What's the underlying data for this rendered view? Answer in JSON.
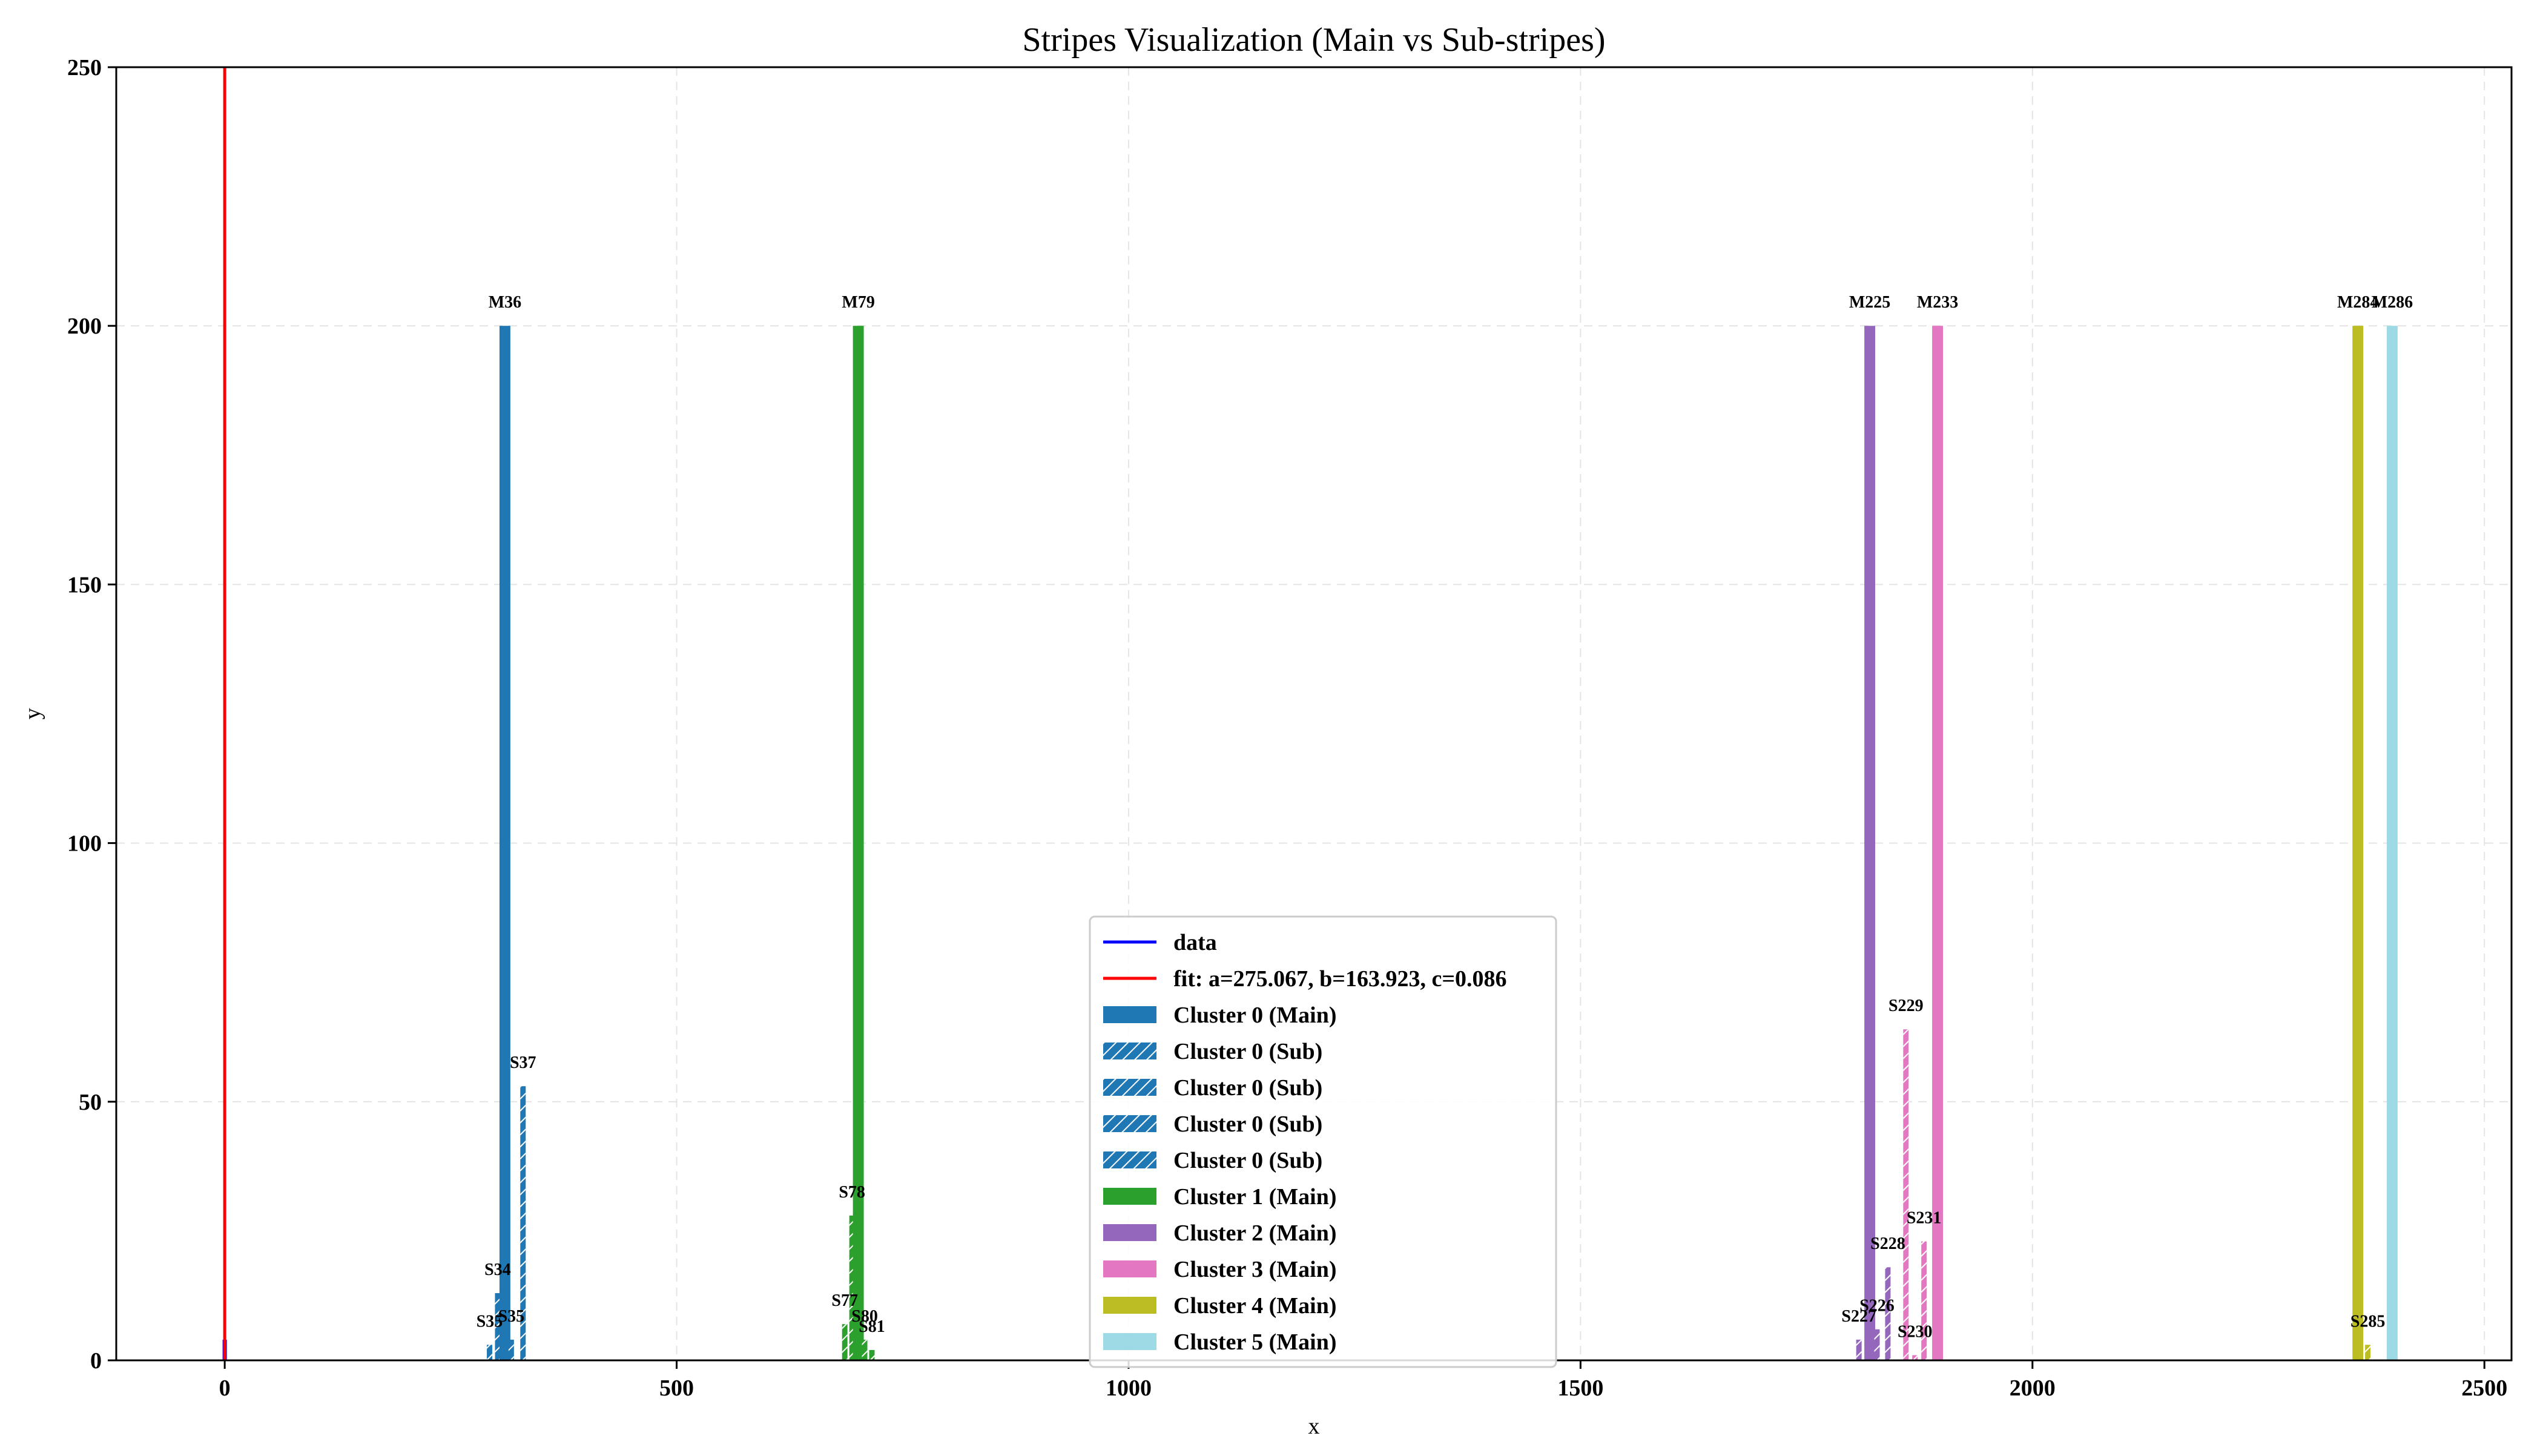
{
  "chart_data": {
    "type": "bar",
    "title": "Stripes Visualization (Main vs Sub-stripes)",
    "xlabel": "x",
    "ylabel": "y",
    "xlim": [
      -120,
      2530
    ],
    "ylim": [
      0,
      250
    ],
    "x_ticks": [
      0,
      500,
      1000,
      1500,
      2000,
      2500
    ],
    "y_ticks": [
      0,
      50,
      100,
      150,
      200,
      250
    ],
    "grid": true,
    "legend_position": "lower center",
    "lines": [
      {
        "name": "data",
        "color": "#0000ff",
        "x": [
          0,
          0
        ],
        "y": [
          0,
          4
        ]
      },
      {
        "name": "fit: a=275.067, b=163.923, c=0.086",
        "color": "#ff0000",
        "x": [
          0,
          0
        ],
        "y": [
          0,
          250
        ]
      }
    ],
    "bars": [
      {
        "label": "S35",
        "x": 293,
        "width": 6,
        "value": 3,
        "kind": "sub",
        "color": "#1f77b4"
      },
      {
        "label": "S34",
        "x": 302,
        "width": 6,
        "value": 13,
        "kind": "sub",
        "color": "#1f77b4"
      },
      {
        "label": "M36",
        "x": 310,
        "width": 12,
        "value": 200,
        "kind": "main",
        "color": "#1f77b4"
      },
      {
        "label": "S35",
        "x": 317,
        "width": 6,
        "value": 4,
        "kind": "sub",
        "color": "#1f77b4"
      },
      {
        "label": "S37",
        "x": 330,
        "width": 6,
        "value": 53,
        "kind": "sub",
        "color": "#1f77b4"
      },
      {
        "label": "S77",
        "x": 686,
        "width": 6,
        "value": 7,
        "kind": "sub",
        "color": "#2ca02c"
      },
      {
        "label": "S78",
        "x": 694,
        "width": 6,
        "value": 28,
        "kind": "sub",
        "color": "#2ca02c"
      },
      {
        "label": "M79",
        "x": 701,
        "width": 12,
        "value": 200,
        "kind": "main",
        "color": "#2ca02c"
      },
      {
        "label": "S80",
        "x": 708,
        "width": 6,
        "value": 4,
        "kind": "sub",
        "color": "#2ca02c"
      },
      {
        "label": "S81",
        "x": 716,
        "width": 6,
        "value": 2,
        "kind": "sub",
        "color": "#2ca02c"
      },
      {
        "label": "S227",
        "x": 1808,
        "width": 6,
        "value": 4,
        "kind": "sub",
        "color": "#9467bd"
      },
      {
        "label": "M225",
        "x": 1820,
        "width": 12,
        "value": 200,
        "kind": "main",
        "color": "#9467bd"
      },
      {
        "label": "S226",
        "x": 1828,
        "width": 6,
        "value": 6,
        "kind": "sub",
        "color": "#9467bd"
      },
      {
        "label": "S228",
        "x": 1840,
        "width": 6,
        "value": 18,
        "kind": "sub",
        "color": "#9467bd"
      },
      {
        "label": "S229",
        "x": 1860,
        "width": 6,
        "value": 64,
        "kind": "sub",
        "color": "#e377c2"
      },
      {
        "label": "S230",
        "x": 1870,
        "width": 6,
        "value": 1,
        "kind": "sub",
        "color": "#e377c2"
      },
      {
        "label": "S231",
        "x": 1880,
        "width": 6,
        "value": 23,
        "kind": "sub",
        "color": "#e377c2"
      },
      {
        "label": "M233",
        "x": 1895,
        "width": 12,
        "value": 200,
        "kind": "main",
        "color": "#e377c2"
      },
      {
        "label": "M284",
        "x": 2360,
        "width": 12,
        "value": 200,
        "kind": "main",
        "color": "#bcbd22"
      },
      {
        "label": "S285",
        "x": 2371,
        "width": 6,
        "value": 3,
        "kind": "sub",
        "color": "#bcbd22"
      },
      {
        "label": "M286",
        "x": 2398,
        "width": 12,
        "value": 200,
        "kind": "main",
        "color": "#9edae5"
      }
    ],
    "legend": [
      {
        "label": "data",
        "kind": "line",
        "color": "#0000ff"
      },
      {
        "label": "fit: a=275.067, b=163.923, c=0.086",
        "kind": "line",
        "color": "#ff0000"
      },
      {
        "label": "Cluster 0 (Main)",
        "kind": "main",
        "color": "#1f77b4"
      },
      {
        "label": "Cluster 0 (Sub)",
        "kind": "sub",
        "color": "#1f77b4"
      },
      {
        "label": "Cluster 0 (Sub)",
        "kind": "sub",
        "color": "#1f77b4"
      },
      {
        "label": "Cluster 0 (Sub)",
        "kind": "sub",
        "color": "#1f77b4"
      },
      {
        "label": "Cluster 0 (Sub)",
        "kind": "sub",
        "color": "#1f77b4"
      },
      {
        "label": "Cluster 1 (Main)",
        "kind": "main",
        "color": "#2ca02c"
      },
      {
        "label": "Cluster 2 (Main)",
        "kind": "main",
        "color": "#9467bd"
      },
      {
        "label": "Cluster 3 (Main)",
        "kind": "main",
        "color": "#e377c2"
      },
      {
        "label": "Cluster 4 (Main)",
        "kind": "main",
        "color": "#bcbd22"
      },
      {
        "label": "Cluster 5 (Main)",
        "kind": "main",
        "color": "#9edae5"
      }
    ]
  }
}
